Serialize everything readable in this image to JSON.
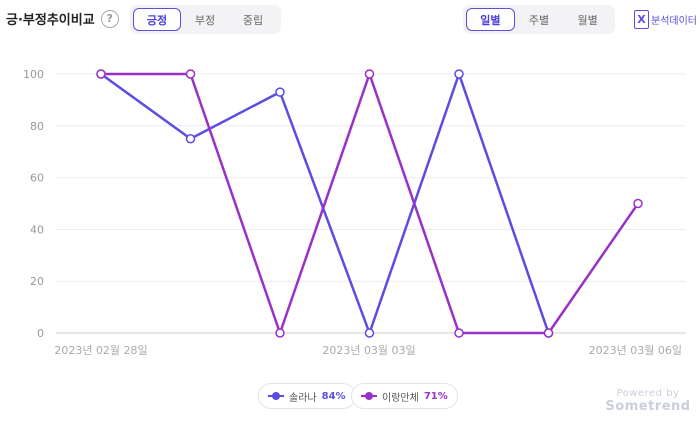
{
  "header": {
    "title": "긍·부정추이비교",
    "help_label": "?",
    "sentiment_tabs": [
      "긍정",
      "부정",
      "중립"
    ],
    "period_tabs": [
      "일별",
      "주별",
      "월별"
    ],
    "analysis_label": "분석데이터",
    "analysis_icon": "excel-icon"
  },
  "chart_data": {
    "type": "line",
    "x": [
      "2023-02-28",
      "2023-03-01",
      "2023-03-02",
      "2023-03-03",
      "2023-03-04",
      "2023-03-05",
      "2023-03-06"
    ],
    "xtick_labels": [
      "2023년 02월 28일",
      "2023년 03월 03일",
      "2023년 03월 06일"
    ],
    "ylim": [
      0,
      100
    ],
    "yticks": [
      "0",
      "20",
      "40",
      "60",
      "80",
      "100"
    ],
    "grid": true,
    "legend_position": "bottom-center",
    "series": [
      {
        "name": "솔라나",
        "color": "#5b4de0",
        "values": [
          100,
          75,
          93,
          0,
          100,
          0,
          null
        ],
        "summary": "84%"
      },
      {
        "name": "이랑만체",
        "color": "#9b30c8",
        "values": [
          100,
          100,
          0,
          100,
          0,
          0,
          50
        ],
        "summary": "71%"
      }
    ]
  },
  "footer": {
    "powered_by": "Powered by",
    "brand": "Sometrend"
  }
}
